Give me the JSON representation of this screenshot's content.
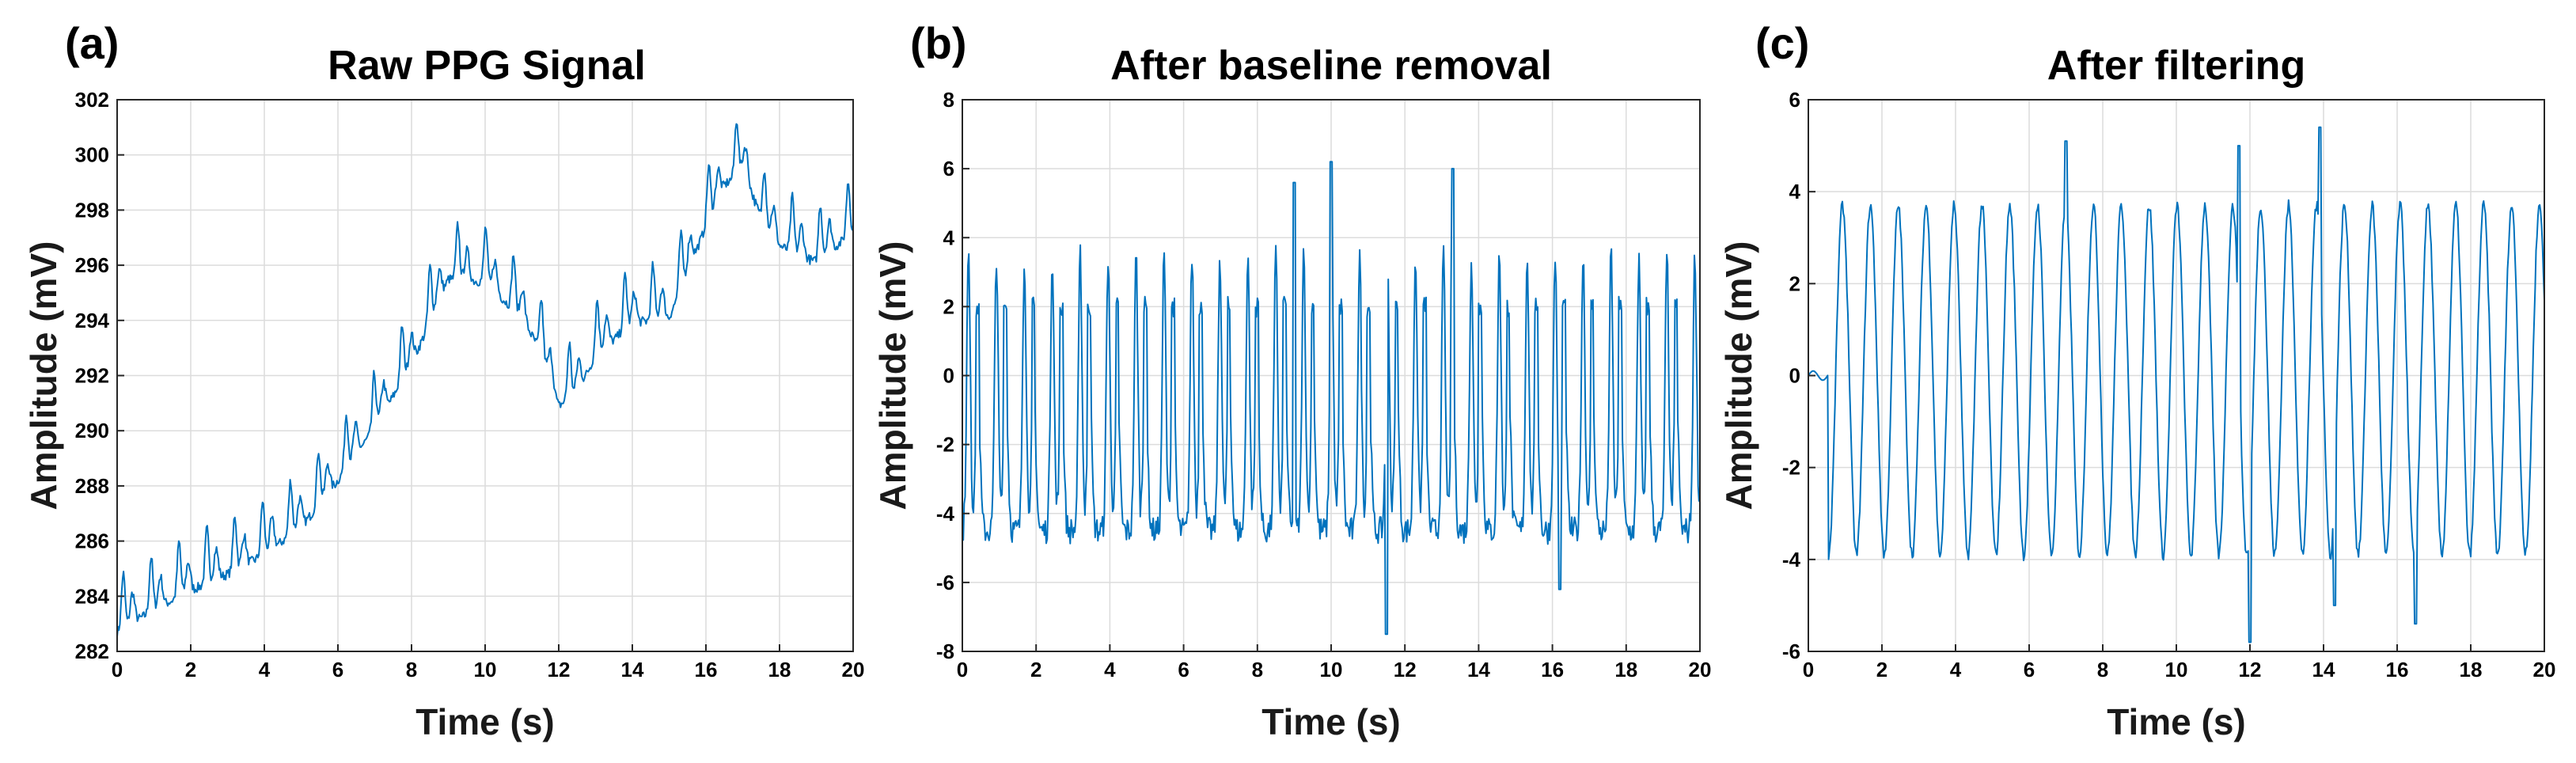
{
  "colors": {
    "signal": "#0072BD",
    "background": "#ffffff"
  },
  "chart_data": [
    {
      "type": "line",
      "panel_label": "(a)",
      "title": "Raw PPG Signal",
      "xlabel": "Time (s)",
      "ylabel": "Amplitude (mV)",
      "xlim": [
        0,
        20
      ],
      "ylim": [
        282,
        302
      ],
      "xticks": [
        0,
        2,
        4,
        6,
        8,
        10,
        12,
        14,
        16,
        18,
        20
      ],
      "yticks": [
        282,
        284,
        286,
        288,
        290,
        292,
        294,
        296,
        298,
        300,
        302
      ],
      "grid": true,
      "sample_rate_hz": 40,
      "series": [
        {
          "name": "Raw PPG",
          "shape": "pulse train, ~1.3 Hz, peak-to-peak ~2 mV riding on a slowly rising baseline",
          "envelope_t": [
            0,
            1,
            2,
            3,
            4,
            5,
            6,
            7,
            8,
            9,
            10,
            11,
            11.5,
            12,
            12.5,
            13,
            14,
            15,
            16,
            16.5,
            17,
            17.5,
            18,
            19,
            20
          ],
          "envelope_mean": [
            283.8,
            284.6,
            285.3,
            285.9,
            286.6,
            287.6,
            289.3,
            291.2,
            293.5,
            296.6,
            296.5,
            295.2,
            294.0,
            292.0,
            292.5,
            293.8,
            295.0,
            295.2,
            298.5,
            300.0,
            300.6,
            298.8,
            297.8,
            297.2,
            298.3
          ],
          "envelope_amplitude": 1.1
        }
      ]
    },
    {
      "type": "line",
      "panel_label": "(b)",
      "title": "After baseline removal",
      "xlabel": "Time (s)",
      "ylabel": "Amplitude (mV)",
      "xlim": [
        0,
        20
      ],
      "ylim": [
        -8,
        8
      ],
      "xticks": [
        0,
        2,
        4,
        6,
        8,
        10,
        12,
        14,
        16,
        18,
        20
      ],
      "yticks": [
        -8,
        -6,
        -4,
        -2,
        0,
        2,
        4,
        6,
        8
      ],
      "grid": true,
      "sample_rate_hz": 40,
      "series": [
        {
          "name": "Baseline removed",
          "shape": "pulse train, ~4.3 mV peaks, ~-4.5 mV troughs, dicrotic notch near 2 mV",
          "peak_level": 4.3,
          "trough_level": -4.5,
          "notch_level": 2.0,
          "spike_times": [
            9.0,
            10.0,
            11.5,
            13.3,
            16.2
          ],
          "spike_values": [
            5.6,
            6.2,
            -7.5,
            6.0,
            -6.2
          ]
        }
      ]
    },
    {
      "type": "line",
      "panel_label": "(c)",
      "title": "After filtering",
      "xlabel": "Time (s)",
      "ylabel": "Amplitude (mV)",
      "xlim": [
        0,
        20
      ],
      "ylim": [
        -6,
        6
      ],
      "xticks": [
        0,
        2,
        4,
        6,
        8,
        10,
        12,
        14,
        16,
        18,
        20
      ],
      "yticks": [
        -6,
        -4,
        -2,
        0,
        2,
        4,
        6
      ],
      "grid": true,
      "sample_rate_hz": 40,
      "series": [
        {
          "name": "Filtered",
          "shape": "smooth pulse train, ~3.7 mV peaks, ~-3.9 mV troughs, starts flat near 0",
          "peak_level": 3.7,
          "trough_level": -3.9,
          "onset_time": 0.55,
          "spike_times": [
            7.0,
            11.7,
            12.0,
            13.9,
            14.3,
            16.5
          ],
          "spike_values": [
            5.1,
            5.0,
            -5.8,
            5.4,
            -5.0,
            -5.4
          ]
        }
      ]
    }
  ]
}
